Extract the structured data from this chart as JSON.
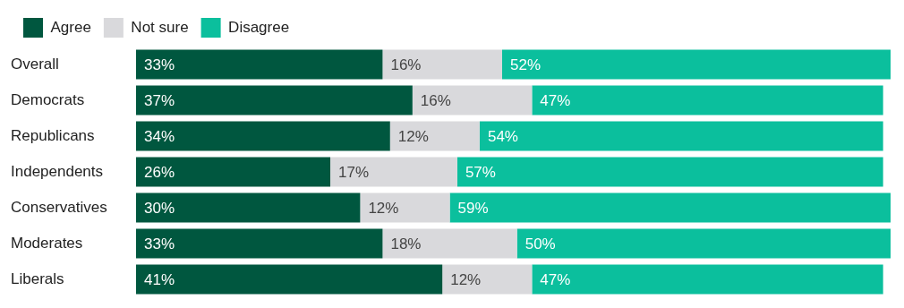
{
  "chart_data": {
    "type": "bar",
    "orientation": "horizontal",
    "stacked": true,
    "legend": "top left",
    "tick_labels": "y",
    "categories": [
      "Overall",
      "Democrats",
      "Republicans",
      "Independents",
      "Conservatives",
      "Moderates",
      "Liberals"
    ],
    "series": [
      {
        "name": "Agree",
        "color": "#00573f",
        "values": [
          33,
          37,
          34,
          26,
          30,
          33,
          41
        ],
        "value_labels": [
          "33%",
          "37%",
          "34%",
          "26%",
          "30%",
          "33%",
          "41%"
        ]
      },
      {
        "name": "Not sure",
        "color": "#d9d9dc",
        "values": [
          16,
          16,
          12,
          17,
          12,
          18,
          12
        ],
        "value_labels": [
          "16%",
          "16%",
          "12%",
          "17%",
          "12%",
          "18%",
          "12%"
        ]
      },
      {
        "name": "Disagree",
        "color": "#0bbf9d",
        "values": [
          52,
          47,
          54,
          57,
          59,
          50,
          47
        ],
        "value_labels": [
          "52%",
          "47%",
          "54%",
          "57%",
          "59%",
          "50%",
          "47%"
        ]
      }
    ]
  }
}
